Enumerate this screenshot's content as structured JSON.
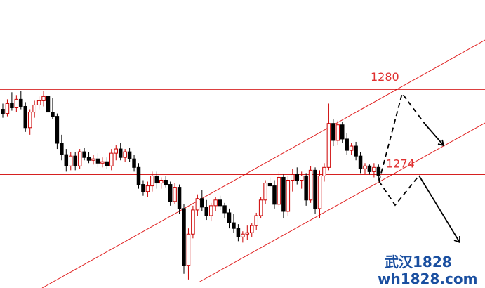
{
  "chart_data": {
    "type": "candlestick",
    "categories": [
      null,
      null,
      null,
      null,
      null,
      null,
      null,
      null,
      null,
      null,
      null,
      null,
      null,
      null,
      null,
      null,
      null,
      null,
      null,
      null,
      null,
      null,
      null,
      null,
      null,
      null,
      null,
      null,
      null,
      null,
      null,
      null,
      null,
      null,
      null,
      null,
      null,
      null,
      null,
      null,
      null,
      null,
      null,
      null,
      null,
      null,
      null,
      null,
      null,
      null,
      null,
      null,
      null,
      null,
      null,
      null,
      null,
      null,
      null,
      null,
      null,
      null,
      null,
      null,
      null,
      null,
      null,
      null,
      null,
      null,
      null,
      null,
      null,
      null,
      null,
      null,
      null,
      null,
      null,
      null,
      null,
      null,
      null,
      null
    ],
    "open": [
      1278.6,
      1278.3,
      1279.0,
      1278.7,
      1279.3,
      1278.8,
      1277.3,
      1278.4,
      1278.9,
      1279.2,
      1279.5,
      1278.4,
      1278.1,
      1276.2,
      1275.4,
      1274.6,
      1275.3,
      1274.6,
      1275.6,
      1275.2,
      1275.0,
      1275.1,
      1274.8,
      1274.9,
      1274.6,
      1275.5,
      1275.8,
      1275.2,
      1275.6,
      1275.1,
      1274.5,
      1273.3,
      1272.8,
      1273.2,
      1273.9,
      1273.4,
      1273.6,
      1273.3,
      1272.1,
      1273.1,
      1271.6,
      1267.6,
      1269.8,
      1271.5,
      1272.3,
      1271.7,
      1271.1,
      1271.8,
      1272.2,
      1271.8,
      1271.3,
      1270.6,
      1270.2,
      1269.6,
      1269.8,
      1269.9,
      1270.4,
      1271.1,
      1272.2,
      1273.4,
      1273.2,
      1271.9,
      1273.8,
      1271.4,
      1273.6,
      1274.0,
      1273.6,
      1273.9,
      1272.2,
      1274.3,
      1271.6,
      1273.9,
      1274.5,
      1277.6,
      1276.4,
      1277.5,
      1276.5,
      1275.7,
      1276.0,
      1275.3,
      1274.4,
      1274.6,
      1274.2,
      1274.5
    ],
    "high": [
      1279.0,
      1279.3,
      1279.8,
      1279.6,
      1279.9,
      1279.1,
      1278.6,
      1279.2,
      1279.5,
      1279.9,
      1279.7,
      1279.4,
      1278.3,
      1276.8,
      1275.8,
      1275.6,
      1275.6,
      1275.8,
      1275.9,
      1275.6,
      1275.4,
      1275.5,
      1275.2,
      1275.2,
      1275.8,
      1276.1,
      1276.2,
      1275.8,
      1275.9,
      1275.4,
      1274.8,
      1273.6,
      1273.5,
      1274.2,
      1274.2,
      1273.8,
      1273.9,
      1273.5,
      1273.4,
      1273.3,
      1271.9,
      1270.2,
      1271.8,
      1272.6,
      1272.9,
      1272.2,
      1272.0,
      1272.4,
      1272.5,
      1272.0,
      1271.6,
      1271.2,
      1270.5,
      1270.0,
      1270.4,
      1270.6,
      1271.3,
      1272.4,
      1273.6,
      1273.8,
      1273.6,
      1274.2,
      1274.0,
      1273.9,
      1274.4,
      1274.5,
      1274.2,
      1274.1,
      1274.6,
      1274.5,
      1274.3,
      1274.8,
      1279.0,
      1277.9,
      1277.8,
      1277.7,
      1276.9,
      1276.2,
      1276.3,
      1275.6,
      1274.8,
      1274.7,
      1274.8,
      1274.7
    ],
    "low": [
      1278.0,
      1278.1,
      1278.5,
      1278.4,
      1278.6,
      1277.0,
      1276.8,
      1278.0,
      1278.6,
      1278.8,
      1278.2,
      1277.9,
      1275.8,
      1275.0,
      1274.2,
      1274.3,
      1274.3,
      1274.4,
      1275.0,
      1274.8,
      1274.7,
      1274.5,
      1274.5,
      1274.4,
      1274.3,
      1275.0,
      1275.0,
      1274.9,
      1274.9,
      1274.2,
      1273.0,
      1272.5,
      1272.4,
      1272.8,
      1273.0,
      1273.0,
      1273.1,
      1271.8,
      1271.9,
      1271.2,
      1267.0,
      1266.6,
      1269.5,
      1271.1,
      1271.4,
      1270.8,
      1270.7,
      1271.4,
      1271.5,
      1270.9,
      1270.2,
      1269.9,
      1269.3,
      1269.2,
      1269.4,
      1269.6,
      1270.1,
      1270.9,
      1271.9,
      1273.0,
      1271.6,
      1271.7,
      1270.9,
      1271.1,
      1272.8,
      1273.3,
      1273.0,
      1271.8,
      1272.0,
      1271.2,
      1270.9,
      1273.5,
      1274.3,
      1276.0,
      1276.1,
      1276.2,
      1275.4,
      1275.4,
      1275.0,
      1274.1,
      1274.0,
      1274.0,
      1273.8,
      1273.6
    ],
    "close": [
      1278.3,
      1279.0,
      1278.7,
      1279.3,
      1278.8,
      1277.3,
      1278.4,
      1278.9,
      1279.2,
      1279.5,
      1278.4,
      1278.1,
      1276.2,
      1275.4,
      1274.6,
      1275.3,
      1274.6,
      1275.6,
      1275.2,
      1275.0,
      1275.1,
      1274.8,
      1274.9,
      1274.6,
      1275.5,
      1275.8,
      1275.2,
      1275.6,
      1275.1,
      1274.5,
      1273.3,
      1272.8,
      1273.2,
      1273.9,
      1273.4,
      1273.6,
      1273.3,
      1272.1,
      1273.1,
      1271.6,
      1267.6,
      1269.8,
      1271.5,
      1272.3,
      1271.7,
      1271.1,
      1271.8,
      1272.2,
      1271.8,
      1271.3,
      1270.6,
      1270.2,
      1269.6,
      1269.8,
      1269.9,
      1270.4,
      1271.1,
      1272.2,
      1273.4,
      1273.2,
      1271.9,
      1273.8,
      1271.4,
      1273.6,
      1274.0,
      1273.6,
      1273.9,
      1272.2,
      1274.3,
      1271.6,
      1273.9,
      1274.5,
      1277.6,
      1276.4,
      1277.5,
      1276.5,
      1275.7,
      1276.0,
      1275.3,
      1274.4,
      1274.6,
      1274.2,
      1274.5,
      1273.9
    ],
    "up_color": "#cc0000",
    "down_color": "#000000",
    "levels": [
      1280,
      1274
    ],
    "level_color": "#e03030",
    "ylim": [
      1266,
      1286.3
    ]
  },
  "watermark": {
    "line1": "武汉1828",
    "line2": "wh1828.com"
  }
}
